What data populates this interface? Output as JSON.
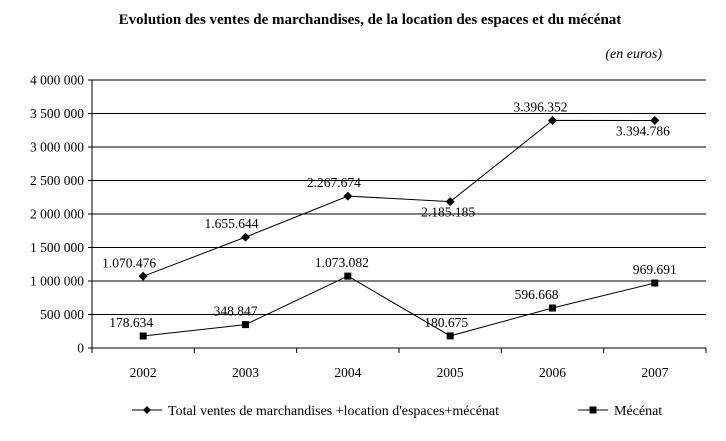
{
  "chart_data": {
    "type": "line",
    "title": "Evolution des ventes de marchandises, de la location des espaces et du mécénat",
    "unit_note": "(en euros)",
    "categories": [
      "2002",
      "2003",
      "2004",
      "2005",
      "2006",
      "2007"
    ],
    "ylim": [
      0,
      4000000
    ],
    "yticks": [
      0,
      500000,
      1000000,
      1500000,
      2000000,
      2500000,
      3000000,
      3500000,
      4000000
    ],
    "ytick_labels": [
      "0",
      "500 000",
      "1 000 000",
      "1 500 000",
      "2 000 000",
      "2 500 000",
      "3 000 000",
      "3 500 000",
      "4 000 000"
    ],
    "grid": "horizontal",
    "legend_position": "bottom",
    "series": [
      {
        "name": "Total ventes de marchandises +location d'espaces+mécénat",
        "marker": "diamond",
        "color": "#000000",
        "values": [
          1070476,
          1655644,
          2267674,
          2185185,
          3396352,
          3394786
        ],
        "labels": [
          "1.070.476",
          "1.655.644",
          "2.267.674",
          "2.185.185",
          "3.396.352",
          "3.394.786"
        ]
      },
      {
        "name": "Mécénat",
        "marker": "square",
        "color": "#000000",
        "values": [
          178634,
          348847,
          1073082,
          180675,
          596668,
          969691
        ],
        "labels": [
          "178.634",
          "348.847",
          "1.073.082",
          "180.675",
          "596.668",
          "969.691"
        ]
      }
    ]
  }
}
